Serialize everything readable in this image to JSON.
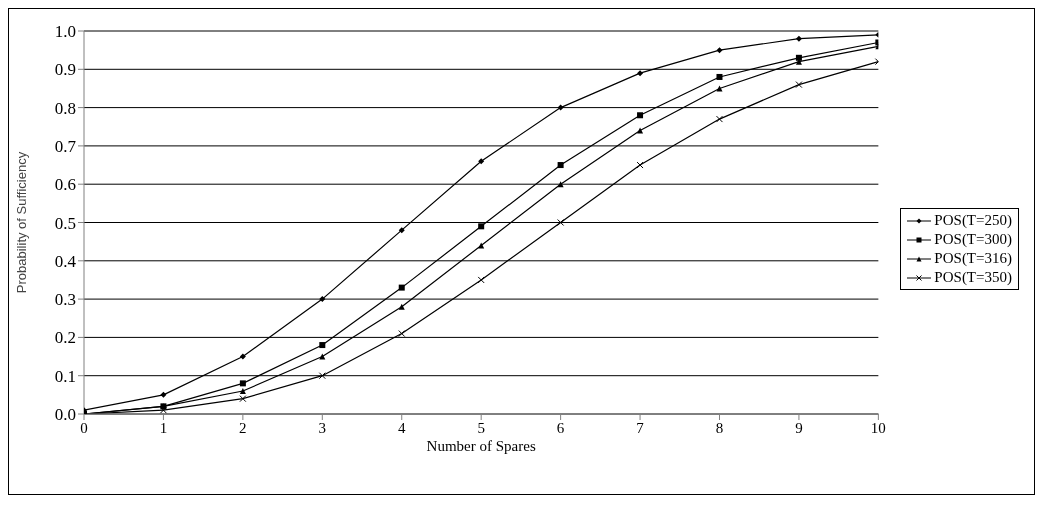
{
  "chart_data": {
    "type": "line",
    "xlabel": "Number of Spares",
    "ylabel": "Probability of Sufficiency",
    "x": [
      0,
      1,
      2,
      3,
      4,
      5,
      6,
      7,
      8,
      9,
      10
    ],
    "xlim": [
      0,
      10
    ],
    "xticks": [
      0,
      1,
      2,
      3,
      4,
      5,
      6,
      7,
      8,
      9,
      10
    ],
    "ylim": [
      0,
      1
    ],
    "yticks": [
      {
        "value": 0,
        "label": "0.0"
      },
      {
        "value": 0.1,
        "label": "0.1"
      },
      {
        "value": 0.2,
        "label": "0.2"
      },
      {
        "value": 0.3,
        "label": "0.3"
      },
      {
        "value": 0.4,
        "label": "0.4"
      },
      {
        "value": 0.5,
        "label": "0.5"
      },
      {
        "value": 0.6,
        "label": "0.6"
      },
      {
        "value": 0.7,
        "label": "0.7"
      },
      {
        "value": 0.8,
        "label": "0.8"
      },
      {
        "value": 0.9,
        "label": "0.9"
      },
      {
        "value": 1,
        "label": "1.0"
      }
    ],
    "grid": "y",
    "legend": "right",
    "line_style": "solid",
    "series": [
      {
        "name": "POS(T=250)",
        "color": "#000000",
        "marker": "diamond",
        "values": [
          0.01,
          0.05,
          0.15,
          0.3,
          0.48,
          0.66,
          0.8,
          0.89,
          0.95,
          0.98,
          0.99
        ]
      },
      {
        "name": "POS(T=300)",
        "color": "#000000",
        "marker": "square",
        "values": [
          0,
          0.02,
          0.08,
          0.18,
          0.33,
          0.49,
          0.65,
          0.78,
          0.88,
          0.93,
          0.97
        ]
      },
      {
        "name": "POS(T=316)",
        "color": "#000000",
        "marker": "triangle",
        "values": [
          0,
          0.02,
          0.06,
          0.15,
          0.28,
          0.44,
          0.6,
          0.74,
          0.85,
          0.92,
          0.96
        ]
      },
      {
        "name": "POS(T=350)",
        "color": "#000000",
        "marker": "cross",
        "values": [
          0,
          0.01,
          0.04,
          0.1,
          0.21,
          0.35,
          0.5,
          0.65,
          0.77,
          0.86,
          0.92
        ]
      }
    ]
  }
}
